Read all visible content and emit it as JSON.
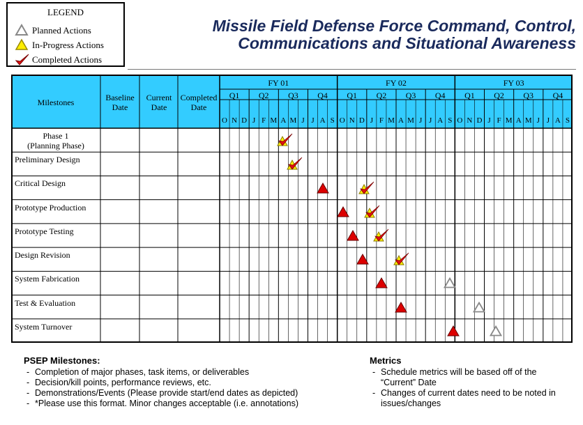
{
  "legend": {
    "title": "LEGEND",
    "items": [
      {
        "label": "Planned Actions",
        "icon": "open-triangle-icon"
      },
      {
        "label": "In-Progress Actions",
        "icon": "yellow-triangle-icon"
      },
      {
        "label": "Completed Actions",
        "icon": "red-checkmark-icon"
      }
    ]
  },
  "title": {
    "line1": "Missile Field Defense Force Command, Control,",
    "line2": "Communications and Situational Awareness"
  },
  "table": {
    "headers": {
      "milestones": "Milestones",
      "baseline": "Baseline Date",
      "current": "Current Date",
      "completed": "Completed Date"
    },
    "fiscal_years": [
      "FY 01",
      "FY 02",
      "FY 03"
    ],
    "quarters": [
      "Q1",
      "Q2",
      "Q3",
      "Q4"
    ],
    "months": [
      "O",
      "N",
      "D",
      "J",
      "F",
      "M",
      "A",
      "M",
      "J",
      "J",
      "A",
      "S"
    ],
    "rows": [
      {
        "name": "Phase 1 (Planning Phase)",
        "line1": "Phase 1",
        "line2": "(Planning Phase)",
        "markers": [
          {
            "type": "inprogress-completed",
            "month_index": 6.7
          }
        ]
      },
      {
        "name": "Preliminary Design",
        "markers": [
          {
            "type": "inprogress-completed",
            "month_index": 7.7
          }
        ]
      },
      {
        "name": "Critical Design",
        "markers": [
          {
            "type": "completed-triangle",
            "month_index": 10.5
          },
          {
            "type": "inprogress-completed",
            "month_index": 15.0
          }
        ]
      },
      {
        "name": "Prototype Production",
        "markers": [
          {
            "type": "completed-triangle",
            "month_index": 12.6
          },
          {
            "type": "inprogress-completed",
            "month_index": 15.6
          }
        ]
      },
      {
        "name": "Prototype Testing",
        "markers": [
          {
            "type": "completed-triangle",
            "month_index": 13.6
          },
          {
            "type": "inprogress-completed",
            "month_index": 16.5
          }
        ]
      },
      {
        "name": "Design Revision",
        "markers": [
          {
            "type": "completed-triangle",
            "month_index": 14.6
          },
          {
            "type": "inprogress-completed",
            "month_index": 18.6
          }
        ]
      },
      {
        "name": "System Fabrication",
        "markers": [
          {
            "type": "completed-triangle",
            "month_index": 16.5
          },
          {
            "type": "planned",
            "month_index": 23.5
          }
        ]
      },
      {
        "name": "Test & Evaluation",
        "markers": [
          {
            "type": "completed-triangle",
            "month_index": 18.5
          },
          {
            "type": "planned",
            "month_index": 26.5
          }
        ]
      },
      {
        "name": "System Turnover",
        "markers": [
          {
            "type": "completed-triangle",
            "month_index": 23.8
          },
          {
            "type": "planned",
            "month_index": 28.2
          }
        ]
      }
    ]
  },
  "footer": {
    "psep": {
      "title": "PSEP Milestones:",
      "items": [
        "Completion of major phases, task items, or deliverables",
        "Decision/kill points, performance reviews, etc.",
        "Demonstrations/Events (Please provide start/end dates as depicted)",
        "*Please use this format.  Minor changes acceptable (i.e. annotations)"
      ]
    },
    "metrics": {
      "title": "Metrics",
      "items": [
        "Schedule metrics will be based off of the “Current” Date",
        "Changes of current dates need to be noted in issues/changes"
      ]
    }
  },
  "colors": {
    "header_fill": "#33ccff",
    "title_text": "#1a2a5c",
    "triangle_red": "#dd0000",
    "triangle_yellow": "#ffee00",
    "check_red": "#e01010"
  }
}
